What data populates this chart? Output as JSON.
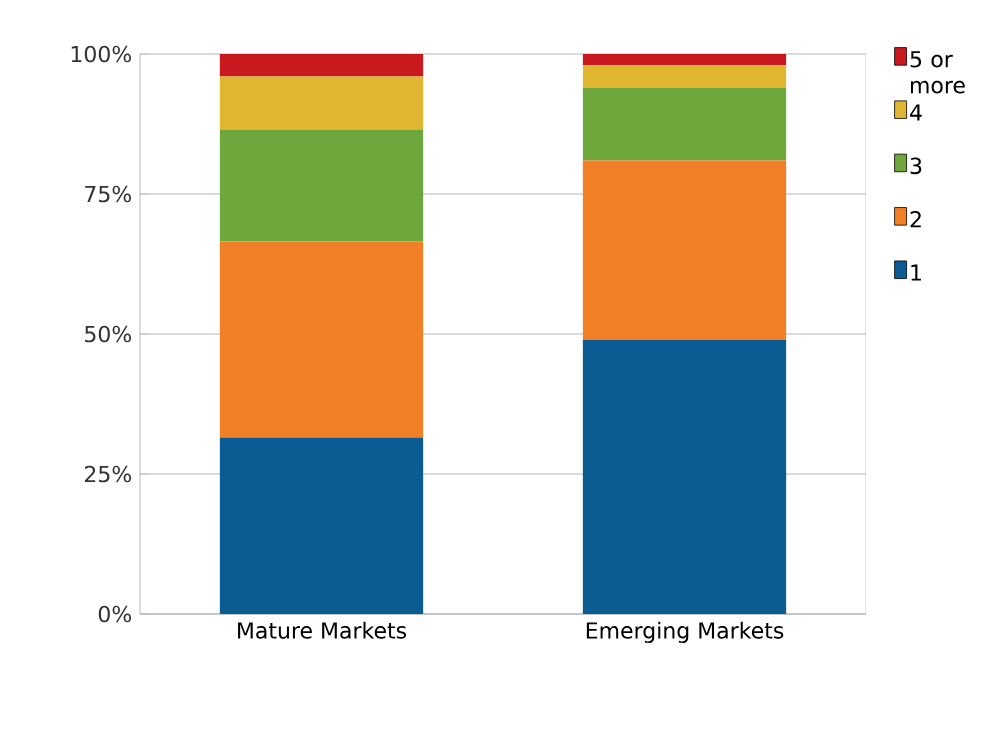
{
  "chart_data": {
    "type": "bar",
    "stacked": true,
    "categories": [
      "Mature Markets",
      "Emerging Markets"
    ],
    "series": [
      {
        "name": "1",
        "color": "#0b5c92",
        "values": [
          31.5,
          49
        ]
      },
      {
        "name": "2",
        "color": "#f07f26",
        "values": [
          35,
          32
        ]
      },
      {
        "name": "3",
        "color": "#6ea83c",
        "values": [
          20,
          13
        ]
      },
      {
        "name": "4",
        "color": "#e0b530",
        "values": [
          9.5,
          4
        ]
      },
      {
        "name": "5 or more",
        "color": "#c8191e",
        "values": [
          4,
          2
        ]
      }
    ],
    "ylim": [
      0,
      100
    ],
    "yticks": [
      {
        "value": 0,
        "label": "0%"
      },
      {
        "value": 25,
        "label": "25%"
      },
      {
        "value": 50,
        "label": "50%"
      },
      {
        "value": 75,
        "label": "75%"
      },
      {
        "value": 100,
        "label": "100%"
      }
    ],
    "grid": "y",
    "legend": "right"
  }
}
